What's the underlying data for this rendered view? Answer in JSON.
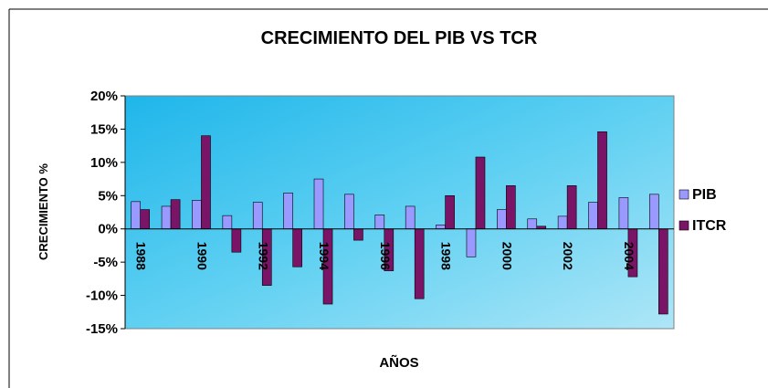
{
  "chart_data": {
    "type": "bar",
    "title": "CRECIMIENTO DEL PIB VS TCR",
    "x_label": "AÑOS",
    "y_label": "CRECIMIENTO %",
    "categories": [
      "1988",
      null,
      "1990",
      null,
      "1992",
      null,
      "1994",
      null,
      "1996",
      null,
      "1998",
      null,
      "2000",
      null,
      "2002",
      null,
      "2004",
      null
    ],
    "series": [
      {
        "name": "PIB",
        "color": "#9999ff",
        "values": [
          4.1,
          3.4,
          4.3,
          2.0,
          4.0,
          5.4,
          7.5,
          5.2,
          2.1,
          3.4,
          0.6,
          -4.2,
          2.9,
          1.5,
          1.9,
          4.0,
          4.7,
          5.2
        ]
      },
      {
        "name": "ITCR",
        "color": "#7a1467",
        "values": [
          2.9,
          4.4,
          14.0,
          -3.5,
          -8.5,
          -5.7,
          -11.3,
          -1.7,
          -6.3,
          -10.5,
          5.0,
          10.8,
          6.5,
          0.4,
          6.5,
          14.6,
          -7.2,
          -12.8
        ]
      }
    ],
    "ylim": [
      -15,
      20
    ],
    "yticks": [
      {
        "value": 20,
        "label": "20%"
      },
      {
        "value": 15,
        "label": "15%"
      },
      {
        "value": 10,
        "label": "10%"
      },
      {
        "value": 5,
        "label": "5%"
      },
      {
        "value": 0,
        "label": "0%"
      },
      {
        "value": -5,
        "label": "-5%"
      },
      {
        "value": -10,
        "label": "-10%"
      },
      {
        "value": -15,
        "label": "-15%"
      }
    ],
    "legend": "right"
  }
}
